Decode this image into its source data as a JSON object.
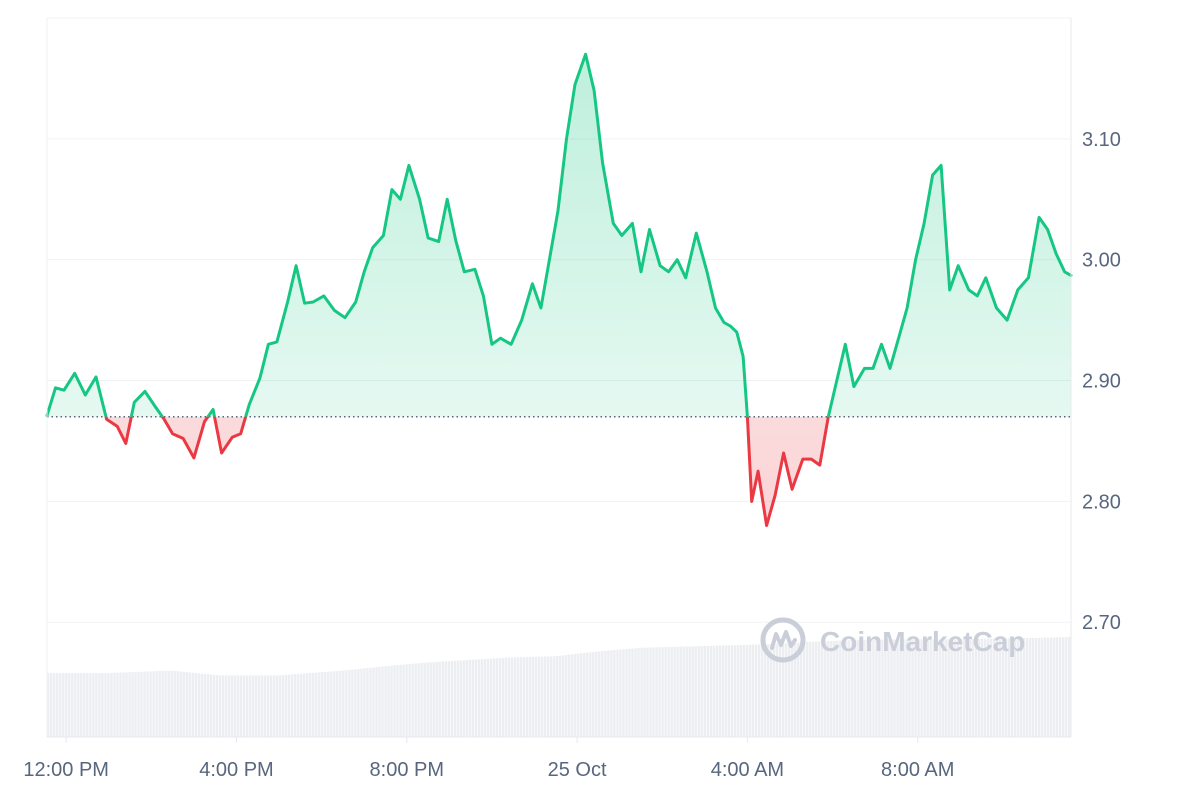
{
  "chart_data": {
    "type": "area",
    "title": "",
    "xlabel": "",
    "ylabel": "",
    "ylim": [
      2.605,
      3.2
    ],
    "baseline": 2.87,
    "x_ticks": [
      "12:00 PM",
      "4:00 PM",
      "8:00 PM",
      "25 Oct",
      "4:00 AM",
      "8:00 AM"
    ],
    "y_ticks": [
      {
        "value": 2.7,
        "label": "2.70"
      },
      {
        "value": 2.8,
        "label": "2.80"
      },
      {
        "value": 2.9,
        "label": "2.90"
      },
      {
        "value": 3.0,
        "label": "3.00"
      },
      {
        "value": 3.1,
        "label": "3.10"
      }
    ],
    "x_range_hours": [
      11.55,
      35.6
    ],
    "x_tick_hours": [
      12,
      16,
      20,
      24,
      28,
      32
    ],
    "series": [
      {
        "x_hours": [
          11.55,
          11.75,
          11.95,
          12.2,
          12.45,
          12.7,
          12.95,
          13.2,
          13.4,
          13.6,
          13.85,
          14.1,
          14.3,
          14.5,
          14.75,
          15.0,
          15.25,
          15.45,
          15.65,
          15.9,
          16.1,
          16.3,
          16.55,
          16.75,
          16.95,
          17.2,
          17.4,
          17.6,
          17.8,
          18.05,
          18.3,
          18.55,
          18.8,
          19.0,
          19.2,
          19.45,
          19.65,
          19.85,
          20.05,
          20.3,
          20.5,
          20.75,
          20.95,
          21.15,
          21.35,
          21.6,
          21.8,
          22.0,
          22.2,
          22.45,
          22.7,
          22.95,
          23.15,
          23.35,
          23.55,
          23.75,
          23.95,
          24.2,
          24.4,
          24.6,
          24.85,
          25.05,
          25.3,
          25.5,
          25.7,
          25.95,
          26.15,
          26.35,
          26.55,
          26.8,
          27.05,
          27.25,
          27.45,
          27.6,
          27.75,
          27.9,
          28.0,
          28.1,
          28.25,
          28.45,
          28.65,
          28.85,
          29.05,
          29.3,
          29.5,
          29.7,
          29.9,
          30.1,
          30.3,
          30.5,
          30.75,
          30.95,
          31.15,
          31.35,
          31.55,
          31.75,
          31.95,
          32.15,
          32.35,
          32.55,
          32.75,
          32.95,
          33.2,
          33.4,
          33.6,
          33.85,
          34.1,
          34.35,
          34.6,
          34.85,
          35.05,
          35.25,
          35.45,
          35.6
        ],
        "values": [
          2.871,
          2.894,
          2.892,
          2.906,
          2.888,
          2.903,
          2.868,
          2.862,
          2.848,
          2.882,
          2.891,
          2.878,
          2.868,
          2.856,
          2.852,
          2.836,
          2.866,
          2.876,
          2.84,
          2.853,
          2.856,
          2.88,
          2.902,
          2.93,
          2.932,
          2.965,
          2.995,
          2.964,
          2.965,
          2.97,
          2.958,
          2.952,
          2.965,
          2.99,
          3.01,
          3.02,
          3.058,
          3.05,
          3.078,
          3.05,
          3.018,
          3.015,
          3.05,
          3.016,
          2.99,
          2.992,
          2.97,
          2.93,
          2.935,
          2.93,
          2.95,
          2.98,
          2.96,
          3.0,
          3.04,
          3.1,
          3.145,
          3.17,
          3.14,
          3.08,
          3.03,
          3.02,
          3.03,
          2.99,
          3.025,
          2.995,
          2.99,
          3.0,
          2.985,
          3.022,
          2.99,
          2.96,
          2.948,
          2.945,
          2.94,
          2.92,
          2.87,
          2.8,
          2.825,
          2.78,
          2.805,
          2.84,
          2.81,
          2.835,
          2.835,
          2.83,
          2.87,
          2.9,
          2.93,
          2.895,
          2.91,
          2.91,
          2.93,
          2.91,
          2.935,
          2.96,
          3.0,
          3.03,
          3.07,
          3.078,
          2.975,
          2.995,
          2.975,
          2.97,
          2.985,
          2.96,
          2.95,
          2.975,
          2.985,
          3.035,
          3.025,
          3.005,
          2.99,
          2.987
        ]
      }
    ],
    "colors": {
      "up_line": "#16c784",
      "down_line": "#ea3943",
      "up_fill": "#16c784",
      "down_fill": "#ea3943",
      "grid": "#eff2f5",
      "axis_text": "#58667e",
      "volume": "#eceef2",
      "baseline_dots": "#58667e"
    },
    "volume": {
      "x_hours": [
        11.55,
        13.0,
        14.5,
        15.6,
        17.0,
        18.5,
        19.6,
        20.6,
        21.5,
        22.5,
        23.5,
        24.5,
        25.5,
        26.5,
        27.5,
        28.5,
        29.5,
        30.5,
        31.5,
        32.5,
        33.5,
        34.5,
        35.6
      ],
      "values": [
        0.0,
        0.0,
        0.2,
        -0.2,
        -0.2,
        0.2,
        0.6,
        0.9,
        1.1,
        1.3,
        1.4,
        1.8,
        2.1,
        2.2,
        2.3,
        2.4,
        2.6,
        2.75,
        2.8,
        2.8,
        2.85,
        2.9,
        3.0
      ]
    },
    "watermark": "CoinMarketCap"
  }
}
